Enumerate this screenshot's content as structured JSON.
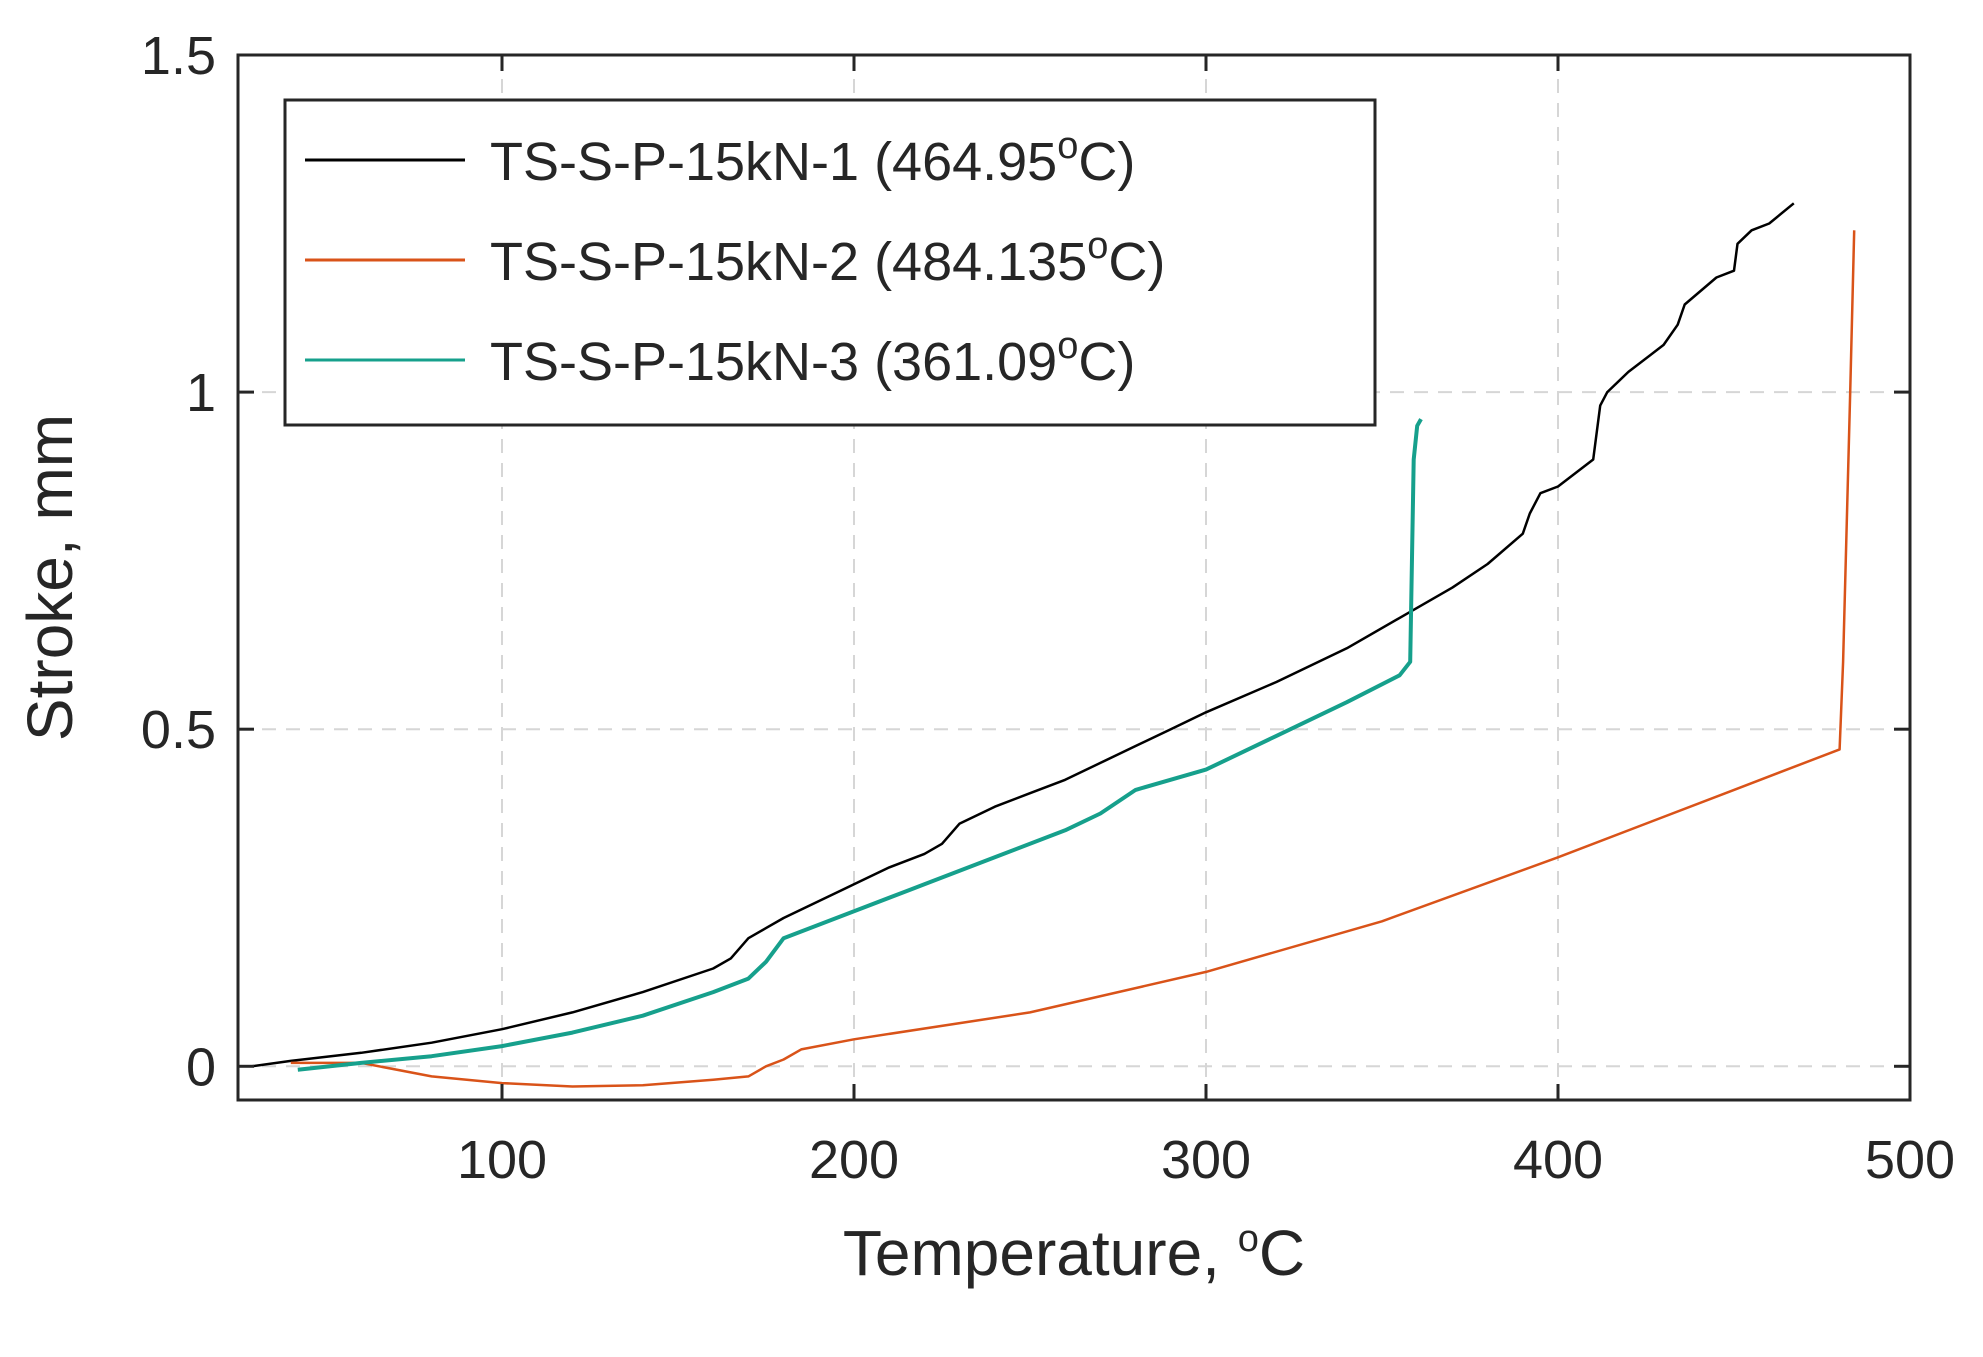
{
  "chart_data": {
    "type": "line",
    "xlabel": "Temperature, ",
    "xlabel_sup": "o",
    "xlabel_suffix": "C",
    "ylabel": "Stroke, mm",
    "xlim": [
      25,
      500
    ],
    "ylim": [
      -0.05,
      1.5
    ],
    "xticks": [
      100,
      200,
      300,
      400,
      500
    ],
    "xtick_labels": [
      "100",
      "200",
      "300",
      "400",
      "500"
    ],
    "yticks": [
      0,
      0.5,
      1,
      1.5
    ],
    "ytick_labels": [
      "0",
      "0.5",
      "1",
      "1.5"
    ],
    "grid": true,
    "legend_position": "top-left",
    "series": [
      {
        "name": "TS-S-P-15kN-1",
        "legend_main": "TS-S-P-15kN-1 (464.95",
        "legend_sup": "o",
        "legend_suffix": "C)",
        "color": "#000000",
        "x": [
          29,
          40,
          60,
          80,
          100,
          120,
          140,
          160,
          165,
          170,
          175,
          180,
          190,
          200,
          210,
          220,
          225,
          230,
          240,
          250,
          260,
          270,
          280,
          290,
          300,
          320,
          340,
          360,
          370,
          380,
          390,
          392,
          395,
          400,
          405,
          410,
          412,
          414,
          420,
          430,
          434,
          436,
          445,
          450,
          451,
          455,
          460,
          467
        ],
        "y": [
          0,
          0.008,
          0.02,
          0.035,
          0.055,
          0.08,
          0.11,
          0.145,
          0.16,
          0.19,
          0.205,
          0.22,
          0.245,
          0.27,
          0.295,
          0.315,
          0.33,
          0.36,
          0.385,
          0.405,
          0.425,
          0.45,
          0.475,
          0.5,
          0.525,
          0.57,
          0.62,
          0.68,
          0.71,
          0.745,
          0.79,
          0.82,
          0.85,
          0.86,
          0.88,
          0.9,
          0.98,
          1.0,
          1.03,
          1.07,
          1.1,
          1.13,
          1.17,
          1.18,
          1.22,
          1.24,
          1.25,
          1.28
        ]
      },
      {
        "name": "TS-S-P-15kN-2",
        "legend_main": "TS-S-P-15kN-2 (484.135",
        "legend_sup": "o",
        "legend_suffix": "C)",
        "color": "#d95319",
        "x": [
          40,
          60,
          80,
          100,
          120,
          140,
          160,
          170,
          175,
          180,
          185,
          200,
          250,
          300,
          350,
          400,
          450,
          480,
          481,
          483,
          484.135
        ],
        "y": [
          0.005,
          0.005,
          -0.015,
          -0.025,
          -0.03,
          -0.028,
          -0.02,
          -0.015,
          0,
          0.01,
          0.025,
          0.04,
          0.08,
          0.14,
          0.215,
          0.31,
          0.41,
          0.47,
          0.6,
          1.0,
          1.24
        ]
      },
      {
        "name": "TS-S-P-15kN-3",
        "legend_main": "TS-S-P-15kN-3 (361.09",
        "legend_sup": "o",
        "legend_suffix": "C)",
        "color": "#16a08c",
        "x": [
          42,
          60,
          80,
          100,
          120,
          140,
          160,
          170,
          175,
          180,
          190,
          200,
          220,
          240,
          260,
          270,
          280,
          300,
          320,
          340,
          355,
          358,
          359,
          360,
          361.09
        ],
        "y": [
          -0.005,
          0.005,
          0.015,
          0.03,
          0.05,
          0.075,
          0.11,
          0.13,
          0.155,
          0.19,
          0.21,
          0.23,
          0.27,
          0.31,
          0.35,
          0.375,
          0.41,
          0.44,
          0.49,
          0.54,
          0.58,
          0.6,
          0.9,
          0.95,
          0.96
        ]
      }
    ]
  }
}
